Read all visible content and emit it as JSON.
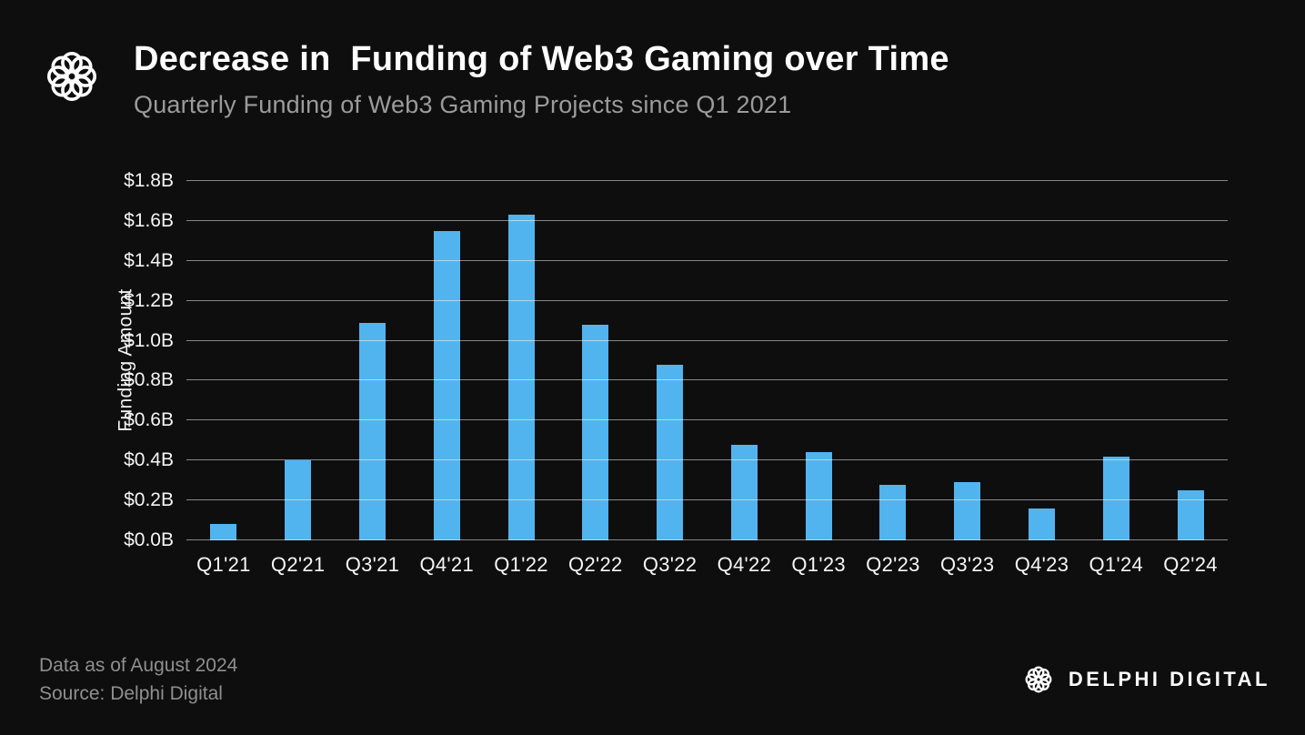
{
  "header": {
    "title": "Decrease in  Funding of Web3 Gaming over Time",
    "subtitle": "Quarterly Funding of Web3 Gaming Projects since Q1 2021"
  },
  "footer": {
    "data_as_of": "Data as of August 2024",
    "source": "Source: Delphi Digital",
    "brand": "DELPHI DIGITAL"
  },
  "colors": {
    "background": "#0e0e0f",
    "bar": "#52b4ee",
    "gridline": "rgba(255,255,255,0.5)",
    "subtitle_text": "#9b9b9b",
    "footer_text": "#8f8f8f"
  },
  "chart_data": {
    "type": "bar",
    "title": "Decrease in Funding of Web3 Gaming over Time",
    "subtitle": "Quarterly Funding of Web3 Gaming Projects since Q1 2021",
    "xlabel": "",
    "ylabel": "Funding Amount",
    "categories": [
      "Q1'21",
      "Q2'21",
      "Q3'21",
      "Q4'21",
      "Q1'22",
      "Q2'22",
      "Q3'22",
      "Q4'22",
      "Q1'23",
      "Q2'23",
      "Q3'23",
      "Q4'23",
      "Q1'24",
      "Q2'24"
    ],
    "values": [
      0.08,
      0.4,
      1.09,
      1.55,
      1.63,
      1.08,
      0.88,
      0.48,
      0.44,
      0.28,
      0.29,
      0.16,
      0.42,
      0.25
    ],
    "ylim": [
      0,
      1.8
    ],
    "ytick_values": [
      0,
      0.2,
      0.4,
      0.6,
      0.8,
      1.0,
      1.2,
      1.4,
      1.6,
      1.8
    ],
    "ytick_labels": [
      "$0.0B",
      "$0.2B",
      "$0.4B",
      "$0.6B",
      "$0.8B",
      "$1.0B",
      "$1.2B",
      "$1.4B",
      "$1.6B",
      "$1.8B"
    ],
    "grid": true,
    "legend": "none"
  }
}
